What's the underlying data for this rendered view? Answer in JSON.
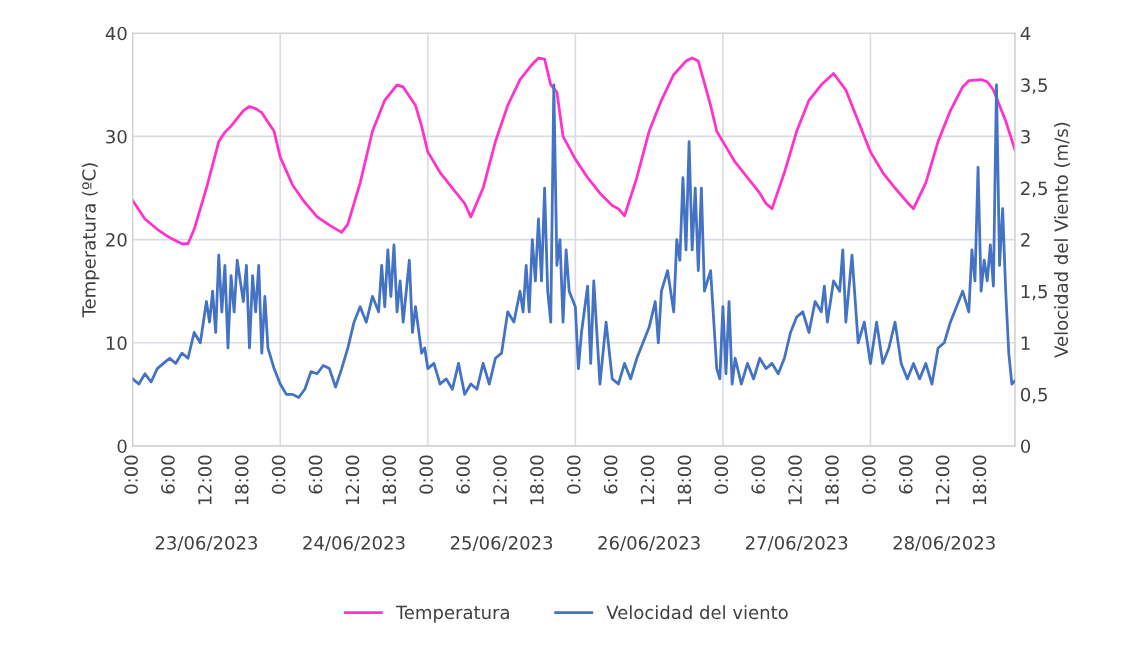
{
  "chart_data": {
    "type": "line",
    "ylabel": "Temperatura (ºC)",
    "y2label": "Velocidad del Viento (m/s)",
    "annotations": [
      "23/06/2023",
      "24/06/2023",
      "25/06/2023",
      "26/06/2023",
      "27/06/2023",
      "28/06/2023"
    ],
    "xlim": [
      "2023-06-23T00:00",
      "2023-06-28T23:30"
    ],
    "xticks": [
      {
        "value": "2023-06-23T00:00",
        "label": "0:00"
      },
      {
        "value": "2023-06-23T06:00",
        "label": "6:00"
      },
      {
        "value": "2023-06-23T12:00",
        "label": "12:00"
      },
      {
        "value": "2023-06-23T18:00",
        "label": "18:00"
      },
      {
        "value": "2023-06-24T00:00",
        "label": "0:00"
      },
      {
        "value": "2023-06-24T06:00",
        "label": "6:00"
      },
      {
        "value": "2023-06-24T12:00",
        "label": "12:00"
      },
      {
        "value": "2023-06-24T18:00",
        "label": "18:00"
      },
      {
        "value": "2023-06-25T00:00",
        "label": "0:00"
      },
      {
        "value": "2023-06-25T06:00",
        "label": "6:00"
      },
      {
        "value": "2023-06-25T12:00",
        "label": "12:00"
      },
      {
        "value": "2023-06-25T18:00",
        "label": "18:00"
      },
      {
        "value": "2023-06-26T00:00",
        "label": "0:00"
      },
      {
        "value": "2023-06-26T06:00",
        "label": "6:00"
      },
      {
        "value": "2023-06-26T12:00",
        "label": "12:00"
      },
      {
        "value": "2023-06-26T18:00",
        "label": "18:00"
      },
      {
        "value": "2023-06-27T00:00",
        "label": "0:00"
      },
      {
        "value": "2023-06-27T06:00",
        "label": "6:00"
      },
      {
        "value": "2023-06-27T12:00",
        "label": "12:00"
      },
      {
        "value": "2023-06-27T18:00",
        "label": "18:00"
      },
      {
        "value": "2023-06-28T00:00",
        "label": "0:00"
      },
      {
        "value": "2023-06-28T06:00",
        "label": "6:00"
      },
      {
        "value": "2023-06-28T12:00",
        "label": "12:00"
      },
      {
        "value": "2023-06-28T18:00",
        "label": "18:00"
      }
    ],
    "ylim": [
      0,
      40
    ],
    "yticks": [
      0,
      10,
      20,
      30,
      40
    ],
    "y2lim": [
      0,
      4
    ],
    "y2ticks": [
      0,
      {
        "value": 0.5,
        "label": "0,5"
      },
      1,
      {
        "value": 1.5,
        "label": "1,5"
      },
      2,
      {
        "value": 2.5,
        "label": "2,5"
      },
      3,
      {
        "value": 3.5,
        "label": "3,5"
      },
      4
    ],
    "grid": "y",
    "legend": "bottom",
    "line_style": "solid",
    "marker": "none",
    "ref_lines": [
      {
        "axis": "x",
        "value": "2023-06-24T00:00",
        "label": null,
        "color": "#d9dde3"
      },
      {
        "axis": "x",
        "value": "2023-06-25T00:00",
        "label": null,
        "color": "#d9dde3"
      },
      {
        "axis": "x",
        "value": "2023-06-26T00:00",
        "label": null,
        "color": "#d9dde3"
      },
      {
        "axis": "x",
        "value": "2023-06-27T00:00",
        "label": null,
        "color": "#d9dde3"
      },
      {
        "axis": "x",
        "value": "2023-06-28T00:00",
        "label": null,
        "color": "#d9dde3"
      }
    ],
    "series": [
      {
        "name": "Temperatura",
        "color": "#ff33cc",
        "x": [
          "2023-06-23T00:00",
          "2023-06-23T02:00",
          "2023-06-23T04:00",
          "2023-06-23T06:00",
          "2023-06-23T08:00",
          "2023-06-23T09:00",
          "2023-06-23T10:00",
          "2023-06-23T12:00",
          "2023-06-23T14:00",
          "2023-06-23T15:00",
          "2023-06-23T16:00",
          "2023-06-23T18:00",
          "2023-06-23T19:00",
          "2023-06-23T20:00",
          "2023-06-23T21:00",
          "2023-06-23T23:00",
          "2023-06-24T00:00",
          "2023-06-24T02:00",
          "2023-06-24T04:00",
          "2023-06-24T06:00",
          "2023-06-24T08:00",
          "2023-06-24T10:00",
          "2023-06-24T11:00",
          "2023-06-24T13:00",
          "2023-06-24T15:00",
          "2023-06-24T17:00",
          "2023-06-24T19:00",
          "2023-06-24T20:00",
          "2023-06-24T22:00",
          "2023-06-24T23:00",
          "2023-06-25T00:00",
          "2023-06-25T02:00",
          "2023-06-25T04:00",
          "2023-06-25T06:00",
          "2023-06-25T07:00",
          "2023-06-25T09:00",
          "2023-06-25T11:00",
          "2023-06-25T13:00",
          "2023-06-25T15:00",
          "2023-06-25T17:00",
          "2023-06-25T18:00",
          "2023-06-25T19:00",
          "2023-06-25T20:00",
          "2023-06-25T21:00",
          "2023-06-25T22:00",
          "2023-06-26T00:00",
          "2023-06-26T02:00",
          "2023-06-26T04:00",
          "2023-06-26T06:00",
          "2023-06-26T07:00",
          "2023-06-26T08:00",
          "2023-06-26T10:00",
          "2023-06-26T12:00",
          "2023-06-26T14:00",
          "2023-06-26T16:00",
          "2023-06-26T18:00",
          "2023-06-26T19:00",
          "2023-06-26T20:00",
          "2023-06-26T22:00",
          "2023-06-26T23:00",
          "2023-06-27T00:00",
          "2023-06-27T02:00",
          "2023-06-27T04:00",
          "2023-06-27T06:00",
          "2023-06-27T07:00",
          "2023-06-27T08:00",
          "2023-06-27T10:00",
          "2023-06-27T12:00",
          "2023-06-27T14:00",
          "2023-06-27T16:00",
          "2023-06-27T18:00",
          "2023-06-27T20:00",
          "2023-06-27T22:00",
          "2023-06-28T00:00",
          "2023-06-28T02:00",
          "2023-06-28T04:00",
          "2023-06-28T06:00",
          "2023-06-28T07:00",
          "2023-06-28T09:00",
          "2023-06-28T11:00",
          "2023-06-28T13:00",
          "2023-06-28T15:00",
          "2023-06-28T16:00",
          "2023-06-28T18:00",
          "2023-06-28T19:00",
          "2023-06-28T20:00",
          "2023-06-28T22:00",
          "2023-06-28T23:30"
        ],
        "values": [
          23.8,
          22,
          21,
          20.2,
          19.6,
          19.6,
          21,
          25,
          29.5,
          30.4,
          31,
          32.5,
          32.9,
          32.7,
          32.3,
          30.5,
          28,
          25.3,
          23.6,
          22.2,
          21.4,
          20.7,
          21.5,
          25.5,
          30.5,
          33.5,
          35,
          34.8,
          33,
          31,
          28.5,
          26.5,
          25,
          23.5,
          22.2,
          25,
          29.5,
          33,
          35.5,
          37,
          37.6,
          37.5,
          35,
          34.3,
          30,
          27.8,
          26,
          24.5,
          23.3,
          23,
          22.3,
          26,
          30.5,
          33.5,
          36,
          37.3,
          37.6,
          37.3,
          33,
          30.5,
          29.5,
          27.5,
          26,
          24.5,
          23.5,
          23,
          26.5,
          30.5,
          33.5,
          35,
          36.1,
          34.5,
          31.5,
          28.5,
          26.5,
          25,
          23.6,
          23,
          25.5,
          29.5,
          32.5,
          34.8,
          35.4,
          35.5,
          35.3,
          34.5,
          31.5,
          28.7
        ]
      },
      {
        "name": "Velocidad del viento",
        "color": "#4472c4",
        "axis": "y2",
        "x": [
          "2023-06-23T00:00",
          "2023-06-23T01:00",
          "2023-06-23T02:00",
          "2023-06-23T03:00",
          "2023-06-23T04:00",
          "2023-06-23T05:00",
          "2023-06-23T06:00",
          "2023-06-23T07:00",
          "2023-06-23T08:00",
          "2023-06-23T09:00",
          "2023-06-23T10:00",
          "2023-06-23T11:00",
          "2023-06-23T12:00",
          "2023-06-23T12:30",
          "2023-06-23T13:00",
          "2023-06-23T13:30",
          "2023-06-23T14:00",
          "2023-06-23T14:30",
          "2023-06-23T15:00",
          "2023-06-23T15:30",
          "2023-06-23T16:00",
          "2023-06-23T16:30",
          "2023-06-23T17:00",
          "2023-06-23T18:00",
          "2023-06-23T18:30",
          "2023-06-23T19:00",
          "2023-06-23T19:30",
          "2023-06-23T20:00",
          "2023-06-23T20:30",
          "2023-06-23T21:00",
          "2023-06-23T21:30",
          "2023-06-23T22:00",
          "2023-06-23T23:00",
          "2023-06-24T00:00",
          "2023-06-24T01:00",
          "2023-06-24T02:00",
          "2023-06-24T03:00",
          "2023-06-24T04:00",
          "2023-06-24T05:00",
          "2023-06-24T06:00",
          "2023-06-24T07:00",
          "2023-06-24T08:00",
          "2023-06-24T09:00",
          "2023-06-24T10:00",
          "2023-06-24T11:00",
          "2023-06-24T12:00",
          "2023-06-24T13:00",
          "2023-06-24T14:00",
          "2023-06-24T15:00",
          "2023-06-24T16:00",
          "2023-06-24T16:30",
          "2023-06-24T17:00",
          "2023-06-24T17:30",
          "2023-06-24T18:00",
          "2023-06-24T18:30",
          "2023-06-24T19:00",
          "2023-06-24T19:30",
          "2023-06-24T20:00",
          "2023-06-24T21:00",
          "2023-06-24T21:30",
          "2023-06-24T22:00",
          "2023-06-24T23:00",
          "2023-06-24T23:30",
          "2023-06-25T00:00",
          "2023-06-25T01:00",
          "2023-06-25T02:00",
          "2023-06-25T03:00",
          "2023-06-25T04:00",
          "2023-06-25T05:00",
          "2023-06-25T06:00",
          "2023-06-25T07:00",
          "2023-06-25T08:00",
          "2023-06-25T09:00",
          "2023-06-25T10:00",
          "2023-06-25T11:00",
          "2023-06-25T12:00",
          "2023-06-25T13:00",
          "2023-06-25T14:00",
          "2023-06-25T15:00",
          "2023-06-25T15:30",
          "2023-06-25T16:00",
          "2023-06-25T16:30",
          "2023-06-25T17:00",
          "2023-06-25T17:30",
          "2023-06-25T18:00",
          "2023-06-25T18:30",
          "2023-06-25T19:00",
          "2023-06-25T19:30",
          "2023-06-25T20:00",
          "2023-06-25T20:30",
          "2023-06-25T21:00",
          "2023-06-25T21:30",
          "2023-06-25T22:00",
          "2023-06-25T22:30",
          "2023-06-25T23:00",
          "2023-06-26T00:00",
          "2023-06-26T00:30",
          "2023-06-26T01:00",
          "2023-06-26T02:00",
          "2023-06-26T02:30",
          "2023-06-26T03:00",
          "2023-06-26T04:00",
          "2023-06-26T05:00",
          "2023-06-26T06:00",
          "2023-06-26T07:00",
          "2023-06-26T08:00",
          "2023-06-26T09:00",
          "2023-06-26T10:00",
          "2023-06-26T11:00",
          "2023-06-26T12:00",
          "2023-06-26T13:00",
          "2023-06-26T13:30",
          "2023-06-26T14:00",
          "2023-06-26T15:00",
          "2023-06-26T16:00",
          "2023-06-26T16:30",
          "2023-06-26T17:00",
          "2023-06-26T17:30",
          "2023-06-26T18:00",
          "2023-06-26T18:30",
          "2023-06-26T19:00",
          "2023-06-26T19:30",
          "2023-06-26T20:00",
          "2023-06-26T20:30",
          "2023-06-26T21:00",
          "2023-06-26T22:00",
          "2023-06-26T23:00",
          "2023-06-26T23:30",
          "2023-06-27T00:00",
          "2023-06-27T00:30",
          "2023-06-27T01:00",
          "2023-06-27T01:30",
          "2023-06-27T02:00",
          "2023-06-27T03:00",
          "2023-06-27T04:00",
          "2023-06-27T05:00",
          "2023-06-27T06:00",
          "2023-06-27T07:00",
          "2023-06-27T08:00",
          "2023-06-27T09:00",
          "2023-06-27T10:00",
          "2023-06-27T11:00",
          "2023-06-27T12:00",
          "2023-06-27T13:00",
          "2023-06-27T14:00",
          "2023-06-27T15:00",
          "2023-06-27T16:00",
          "2023-06-27T16:30",
          "2023-06-27T17:00",
          "2023-06-27T18:00",
          "2023-06-27T19:00",
          "2023-06-27T19:30",
          "2023-06-27T20:00",
          "2023-06-27T21:00",
          "2023-06-27T22:00",
          "2023-06-27T23:00",
          "2023-06-28T00:00",
          "2023-06-28T01:00",
          "2023-06-28T02:00",
          "2023-06-28T03:00",
          "2023-06-28T04:00",
          "2023-06-28T05:00",
          "2023-06-28T06:00",
          "2023-06-28T07:00",
          "2023-06-28T08:00",
          "2023-06-28T09:00",
          "2023-06-28T10:00",
          "2023-06-28T11:00",
          "2023-06-28T12:00",
          "2023-06-28T13:00",
          "2023-06-28T14:00",
          "2023-06-28T15:00",
          "2023-06-28T16:00",
          "2023-06-28T16:30",
          "2023-06-28T17:00",
          "2023-06-28T17:30",
          "2023-06-28T18:00",
          "2023-06-28T18:30",
          "2023-06-28T19:00",
          "2023-06-28T19:30",
          "2023-06-28T20:00",
          "2023-06-28T20:30",
          "2023-06-28T21:00",
          "2023-06-28T21:30",
          "2023-06-28T22:00",
          "2023-06-28T22:30",
          "2023-06-28T23:00",
          "2023-06-28T23:30"
        ],
        "values": [
          0.65,
          0.6,
          0.7,
          0.62,
          0.75,
          0.8,
          0.85,
          0.8,
          0.9,
          0.85,
          1.1,
          1.0,
          1.4,
          1.2,
          1.5,
          1.1,
          1.85,
          1.3,
          1.75,
          0.95,
          1.65,
          1.3,
          1.8,
          1.4,
          1.75,
          0.95,
          1.65,
          1.3,
          1.75,
          0.9,
          1.45,
          0.95,
          0.75,
          0.6,
          0.5,
          0.5,
          0.47,
          0.55,
          0.72,
          0.7,
          0.78,
          0.75,
          0.57,
          0.75,
          0.95,
          1.2,
          1.35,
          1.2,
          1.45,
          1.3,
          1.75,
          1.35,
          1.9,
          1.45,
          1.95,
          1.3,
          1.6,
          1.2,
          1.8,
          1.1,
          1.35,
          0.9,
          0.95,
          0.75,
          0.8,
          0.6,
          0.65,
          0.55,
          0.8,
          0.5,
          0.6,
          0.55,
          0.8,
          0.6,
          0.85,
          0.9,
          1.3,
          1.2,
          1.5,
          1.3,
          1.75,
          1.3,
          2.0,
          1.6,
          2.2,
          1.6,
          2.5,
          1.5,
          1.2,
          3.5,
          1.75,
          2.0,
          1.2,
          1.9,
          1.5,
          1.35,
          0.75,
          1.1,
          1.55,
          0.8,
          1.6,
          0.6,
          1.2,
          0.65,
          0.6,
          0.8,
          0.65,
          0.85,
          1.0,
          1.15,
          1.4,
          1.0,
          1.5,
          1.7,
          1.3,
          2.0,
          1.8,
          2.6,
          1.9,
          2.95,
          1.9,
          2.5,
          1.7,
          2.5,
          1.5,
          1.7,
          0.75,
          0.65,
          1.35,
          0.7,
          1.4,
          0.6,
          0.85,
          0.6,
          0.8,
          0.65,
          0.85,
          0.75,
          0.8,
          0.7,
          0.85,
          1.1,
          1.25,
          1.3,
          1.1,
          1.4,
          1.3,
          1.55,
          1.2,
          1.6,
          1.5,
          1.9,
          1.2,
          1.85,
          1.0,
          1.2,
          0.8,
          1.2,
          0.8,
          0.95,
          1.2,
          0.8,
          0.65,
          0.8,
          0.65,
          0.8,
          0.6,
          0.95,
          1.0,
          1.2,
          1.35,
          1.5,
          1.3,
          1.9,
          1.6,
          2.7,
          1.5,
          1.8,
          1.6,
          1.95,
          1.55,
          3.5,
          1.75,
          2.3,
          1.5,
          0.9,
          0.6,
          0.63
        ]
      }
    ]
  }
}
